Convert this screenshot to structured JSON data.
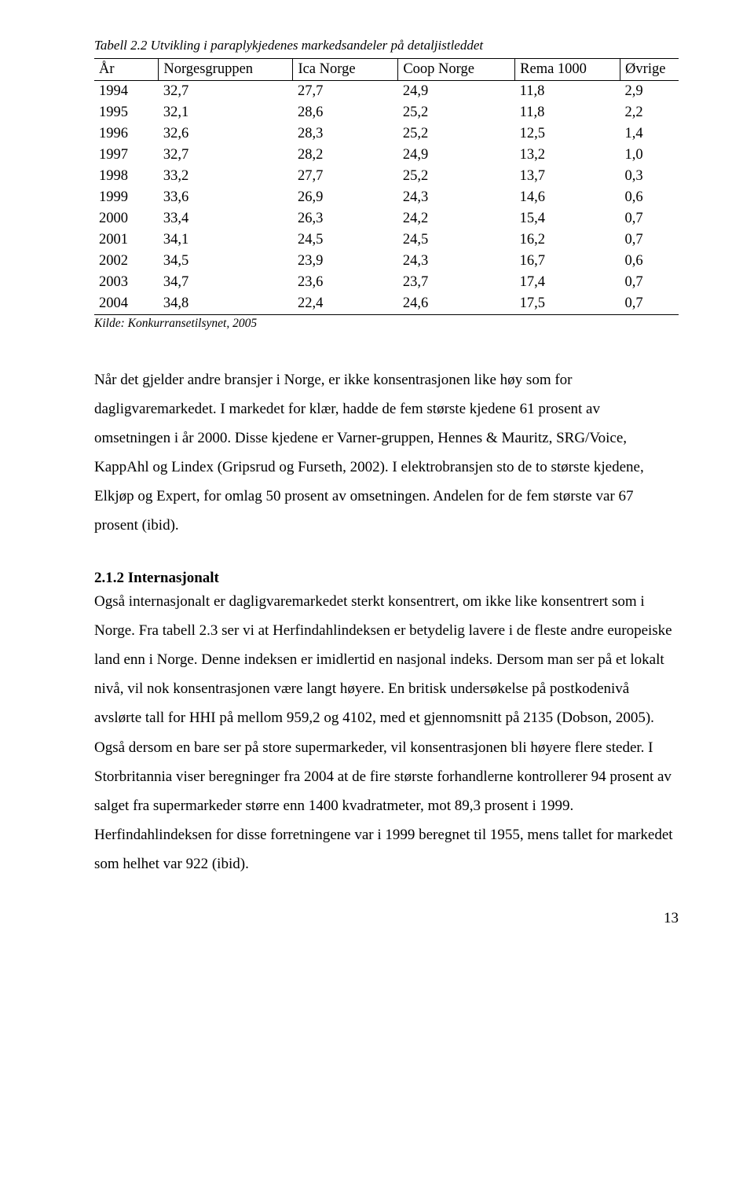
{
  "table": {
    "caption": "Tabell 2.2 Utvikling i paraplykjedenes markedsandeler på detaljistleddet",
    "columns": [
      "År",
      "Norgesgruppen",
      "Ica Norge",
      "Coop Norge",
      "Rema 1000",
      "Øvrige"
    ],
    "rows": [
      [
        "1994",
        "32,7",
        "27,7",
        "24,9",
        "11,8",
        "2,9"
      ],
      [
        "1995",
        "32,1",
        "28,6",
        "25,2",
        "11,8",
        "2,2"
      ],
      [
        "1996",
        "32,6",
        "28,3",
        "25,2",
        "12,5",
        "1,4"
      ],
      [
        "1997",
        "32,7",
        "28,2",
        "24,9",
        "13,2",
        "1,0"
      ],
      [
        "1998",
        "33,2",
        "27,7",
        "25,2",
        "13,7",
        "0,3"
      ],
      [
        "1999",
        "33,6",
        "26,9",
        "24,3",
        "14,6",
        "0,6"
      ],
      [
        "2000",
        "33,4",
        "26,3",
        "24,2",
        "15,4",
        "0,7"
      ],
      [
        "2001",
        "34,1",
        "24,5",
        "24,5",
        "16,2",
        "0,7"
      ],
      [
        "2002",
        "34,5",
        "23,9",
        "24,3",
        "16,7",
        "0,6"
      ],
      [
        "2003",
        "34,7",
        "23,6",
        "23,7",
        "17,4",
        "0,7"
      ],
      [
        "2004",
        "34,8",
        "22,4",
        "24,6",
        "17,5",
        "0,7"
      ]
    ],
    "source": "Kilde: Konkurransetilsynet, 2005"
  },
  "paragraph1": "Når det gjelder andre bransjer i Norge, er ikke konsentrasjonen like høy som for dagligvaremarkedet. I markedet for klær, hadde de fem største kjedene 61 prosent av omsetningen i år 2000. Disse kjedene er Varner-gruppen, Hennes & Mauritz, SRG/Voice, KappAhl og Lindex (Gripsrud og Furseth, 2002). I elektrobransjen sto de to største kjedene, Elkjøp og Expert, for omlag 50 prosent av omsetningen. Andelen for de fem største var 67 prosent (ibid).",
  "section_heading": "2.1.2 Internasjonalt",
  "paragraph2": "Også internasjonalt er dagligvaremarkedet sterkt konsentrert, om ikke like konsentrert som i Norge. Fra tabell 2.3 ser vi at Herfindahlindeksen er betydelig lavere i de fleste andre europeiske land enn i Norge. Denne indeksen er imidlertid en nasjonal indeks. Dersom man ser på et lokalt nivå, vil nok konsentrasjonen være langt høyere. En britisk undersøkelse på postkodenivå avslørte tall for HHI på mellom 959,2 og 4102, med et gjennomsnitt på 2135 (Dobson, 2005). Også dersom en bare ser på store supermarkeder, vil konsentrasjonen bli høyere flere steder. I Storbritannia viser beregninger fra 2004 at de fire største forhandlerne kontrollerer 94 prosent av salget fra supermarkeder større enn 1400 kvadratmeter, mot 89,3 prosent i 1999. Herfindahlindeksen for disse forretningene var i 1999 beregnet til 1955, mens tallet for markedet som helhet var 922 (ibid).",
  "page_number": "13"
}
